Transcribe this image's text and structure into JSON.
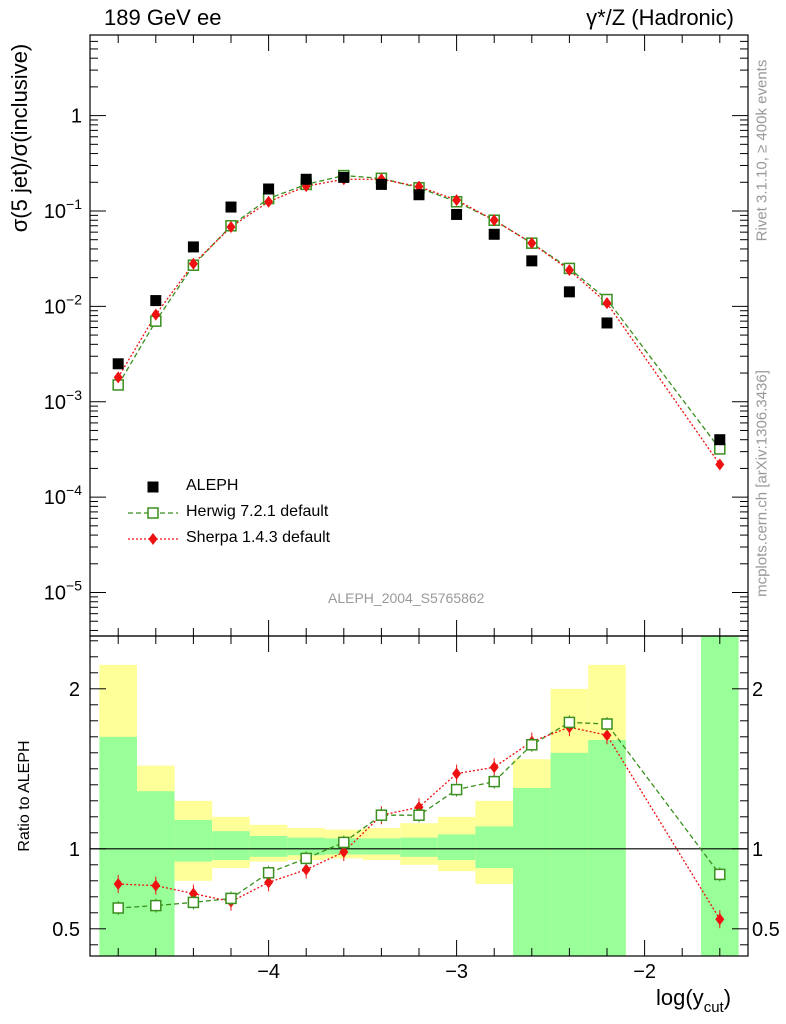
{
  "header": {
    "left": "189 GeV ee",
    "right": "γ*/Z (Hadronic)"
  },
  "side": {
    "rivet": "Rivet 3.1.10, ≥ 400k events",
    "mcplots": "mcplots.cern.ch [arXiv:1306.3436]"
  },
  "watermark": "ALEPH_2004_S5765862",
  "legend": {
    "data": "ALEPH",
    "herwig": "Herwig 7.2.1 default",
    "sherpa": "Sherpa 1.4.3 default"
  },
  "colors": {
    "data": "#000000",
    "herwig": "#3a8f1e",
    "sherpa": "#ee1111",
    "band_inner": "#99ff99",
    "band_outer": "#ffff99"
  },
  "chart_data": [
    {
      "type": "scatter",
      "panel": "main",
      "ylabel": "σ(5 jet)/σ(inclusive)",
      "yscale": "log",
      "xlim": [
        -4.95,
        -1.45
      ],
      "ylim": [
        3.5e-06,
        7.0
      ],
      "ytick_labels": [
        "10^-5",
        "10^-4",
        "10^-3",
        "10^-2",
        "10^-1",
        "1"
      ],
      "series": [
        {
          "name": "ALEPH",
          "x": [
            -4.8,
            -4.6,
            -4.4,
            -4.2,
            -4.0,
            -3.8,
            -3.6,
            -3.4,
            -3.2,
            -3.0,
            -2.8,
            -2.6,
            -2.4,
            -2.2,
            -1.6
          ],
          "y": [
            0.0025,
            0.0115,
            0.042,
            0.11,
            0.17,
            0.215,
            0.225,
            0.19,
            0.148,
            0.092,
            0.057,
            0.03,
            0.0142,
            0.0067,
            0.0004
          ]
        },
        {
          "name": "Herwig 7.2.1 default",
          "x": [
            -4.8,
            -4.6,
            -4.4,
            -4.2,
            -4.0,
            -3.8,
            -3.6,
            -3.4,
            -3.2,
            -3.0,
            -2.8,
            -2.6,
            -2.4,
            -2.2,
            -1.6
          ],
          "y": [
            0.0015,
            0.007,
            0.027,
            0.07,
            0.135,
            0.19,
            0.235,
            0.22,
            0.175,
            0.125,
            0.08,
            0.046,
            0.025,
            0.0118,
            0.00032
          ]
        },
        {
          "name": "Sherpa 1.4.3 default",
          "x": [
            -4.8,
            -4.6,
            -4.4,
            -4.2,
            -4.0,
            -3.8,
            -3.6,
            -3.4,
            -3.2,
            -3.0,
            -2.8,
            -2.6,
            -2.4,
            -2.2,
            -1.6
          ],
          "y": [
            0.0018,
            0.0082,
            0.028,
            0.068,
            0.125,
            0.182,
            0.215,
            0.215,
            0.18,
            0.13,
            0.08,
            0.046,
            0.024,
            0.0108,
            0.00022
          ]
        }
      ]
    },
    {
      "type": "line",
      "panel": "ratio",
      "ylabel": "Ratio to ALEPH",
      "xlabel": "log(y_cut)",
      "xlim": [
        -4.95,
        -1.45
      ],
      "ylim": [
        0.33,
        2.33
      ],
      "xtick_labels": [
        "−4",
        "−3",
        "−2"
      ],
      "ytick_labels": [
        "0.5",
        "1",
        "2"
      ],
      "reference_line": 1,
      "bands": {
        "bin_edges": [
          -4.9,
          -4.7,
          -4.5,
          -4.3,
          -4.1,
          -3.9,
          -3.7,
          -3.5,
          -3.3,
          -3.1,
          -2.9,
          -2.7,
          -2.5,
          -2.3,
          -2.1,
          -1.7,
          -1.5
        ],
        "inner_lo": [
          0.33,
          0.33,
          0.92,
          0.93,
          0.95,
          0.96,
          0.965,
          0.965,
          0.95,
          0.93,
          0.88,
          0.33,
          0.33,
          0.33,
          null,
          0.33
        ],
        "inner_hi": [
          1.7,
          1.36,
          1.18,
          1.11,
          1.08,
          1.07,
          1.065,
          1.065,
          1.07,
          1.09,
          1.14,
          1.38,
          1.6,
          1.68,
          null,
          2.33
        ],
        "outer_lo": [
          0.33,
          0.42,
          0.8,
          0.88,
          0.92,
          0.93,
          0.94,
          0.93,
          0.9,
          0.86,
          0.78,
          0.33,
          0.33,
          0.33,
          null,
          0.33
        ],
        "outer_hi": [
          2.15,
          1.52,
          1.3,
          1.2,
          1.15,
          1.13,
          1.12,
          1.13,
          1.16,
          1.2,
          1.3,
          1.56,
          2.0,
          2.15,
          null,
          2.33
        ]
      },
      "series": [
        {
          "name": "Herwig 7.2.1 default",
          "x": [
            -4.8,
            -4.6,
            -4.4,
            -4.2,
            -4.0,
            -3.8,
            -3.6,
            -3.4,
            -3.2,
            -3.0,
            -2.8,
            -2.6,
            -2.4,
            -2.2,
            -1.6
          ],
          "y": [
            0.63,
            0.645,
            0.665,
            0.69,
            0.85,
            0.94,
            1.04,
            1.21,
            1.21,
            1.37,
            1.42,
            1.65,
            1.79,
            1.78,
            0.84
          ]
        },
        {
          "name": "Sherpa 1.4.3 default",
          "x": [
            -4.8,
            -4.6,
            -4.4,
            -4.2,
            -4.0,
            -3.8,
            -3.6,
            -3.4,
            -3.2,
            -3.0,
            -2.8,
            -2.6,
            -2.4,
            -2.2,
            -1.6
          ],
          "y": [
            0.78,
            0.77,
            0.72,
            0.67,
            0.79,
            0.87,
            0.98,
            1.21,
            1.26,
            1.47,
            1.51,
            1.67,
            1.76,
            1.71,
            0.56
          ]
        }
      ]
    }
  ]
}
